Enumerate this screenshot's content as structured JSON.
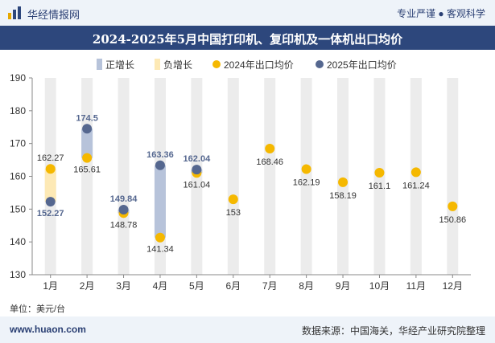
{
  "header": {
    "brand": "华经情报网",
    "tagline": "专业严谨 ● 客观科学"
  },
  "title": "2024-2025年5月中国打印机、复印机及一体机出口均价",
  "unit": "单位：美元/台",
  "footer": {
    "website": "www.huaon.com",
    "source": "数据来源：中国海关，华经产业研究院整理"
  },
  "colors": {
    "header_bar": "#2d477c",
    "series_2024": "#f5b800",
    "series_2025": "#55678f",
    "increase_bar": "#b7c3da",
    "decrease_bar": "#fde9b5",
    "column_bg": "#ececec"
  },
  "chart_data": {
    "type": "scatter",
    "categories": [
      "1月",
      "2月",
      "3月",
      "4月",
      "5月",
      "6月",
      "7月",
      "8月",
      "9月",
      "10月",
      "11月",
      "12月"
    ],
    "ylim": [
      130,
      190
    ],
    "yticks": [
      130,
      140,
      150,
      160,
      170,
      180,
      190
    ],
    "legend_position": "top",
    "legend": {
      "increase": "正增长",
      "decrease": "负增长"
    },
    "series": [
      {
        "name": "2024年出口均价",
        "values": [
          162.27,
          165.61,
          148.78,
          141.34,
          161.04,
          153,
          168.46,
          162.19,
          158.19,
          161.1,
          161.24,
          150.86
        ],
        "labels": [
          "162.27",
          "165.61",
          "148.78",
          "141.34",
          "161.04",
          "153",
          "168.46",
          "162.19",
          "158.19",
          "161.1",
          "161.24",
          "150.86"
        ]
      },
      {
        "name": "2025年出口均价",
        "values": [
          152.27,
          174.5,
          149.84,
          163.36,
          162.04,
          null,
          null,
          null,
          null,
          null,
          null,
          null
        ],
        "labels": [
          "152.27",
          "174.5",
          "149.84",
          "163.36",
          "162.04",
          "",
          "",
          "",
          "",
          "",
          "",
          ""
        ]
      }
    ]
  }
}
